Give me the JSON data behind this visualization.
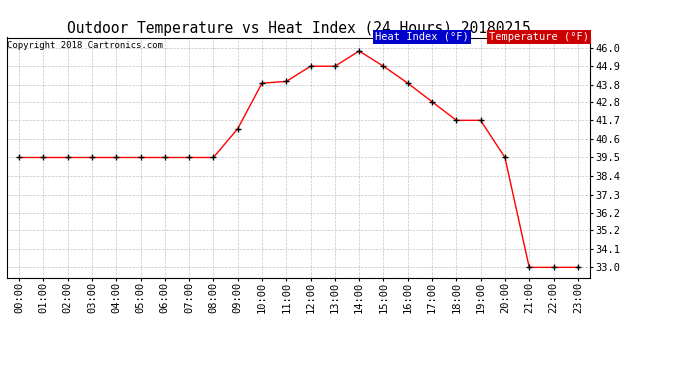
{
  "title": "Outdoor Temperature vs Heat Index (24 Hours) 20180215",
  "copyright": "Copyright 2018 Cartronics.com",
  "legend_heat_index": "Heat Index (°F)",
  "legend_temperature": "Temperature (°F)",
  "hours": [
    0,
    1,
    2,
    3,
    4,
    5,
    6,
    7,
    8,
    9,
    10,
    11,
    12,
    13,
    14,
    15,
    16,
    17,
    18,
    19,
    20,
    21,
    22,
    23
  ],
  "hour_labels": [
    "00:00",
    "01:00",
    "02:00",
    "03:00",
    "04:00",
    "05:00",
    "06:00",
    "07:00",
    "08:00",
    "09:00",
    "10:00",
    "11:00",
    "12:00",
    "13:00",
    "14:00",
    "15:00",
    "16:00",
    "17:00",
    "18:00",
    "19:00",
    "20:00",
    "21:00",
    "22:00",
    "23:00"
  ],
  "temperature": [
    39.5,
    39.5,
    39.5,
    39.5,
    39.5,
    39.5,
    39.5,
    39.5,
    39.5,
    41.2,
    43.9,
    44.0,
    44.9,
    44.9,
    45.8,
    44.9,
    43.9,
    42.8,
    41.7,
    41.7,
    39.5,
    33.0,
    33.0,
    33.0
  ],
  "ylim_min": 32.4,
  "ylim_max": 46.6,
  "yticks": [
    33.0,
    34.1,
    35.2,
    36.2,
    37.3,
    38.4,
    39.5,
    40.6,
    41.7,
    42.8,
    43.8,
    44.9,
    46.0
  ],
  "ytick_labels": [
    "33.0",
    "34.1",
    "35.2",
    "36.2",
    "37.3",
    "38.4",
    "39.5",
    "40.6",
    "41.7",
    "42.8",
    "43.8",
    "44.9",
    "46.0"
  ],
  "heat_index_bg": "#0000cc",
  "temperature_bg": "#cc0000",
  "line_color": "#ff0000",
  "marker_color": "#000000",
  "background_color": "#ffffff",
  "plot_bg_color": "#ffffff",
  "grid_color": "#aaaaaa",
  "border_color": "#000000",
  "title_fontsize": 10.5,
  "copyright_fontsize": 6.5,
  "tick_fontsize": 7.5,
  "legend_fontsize": 7.5
}
